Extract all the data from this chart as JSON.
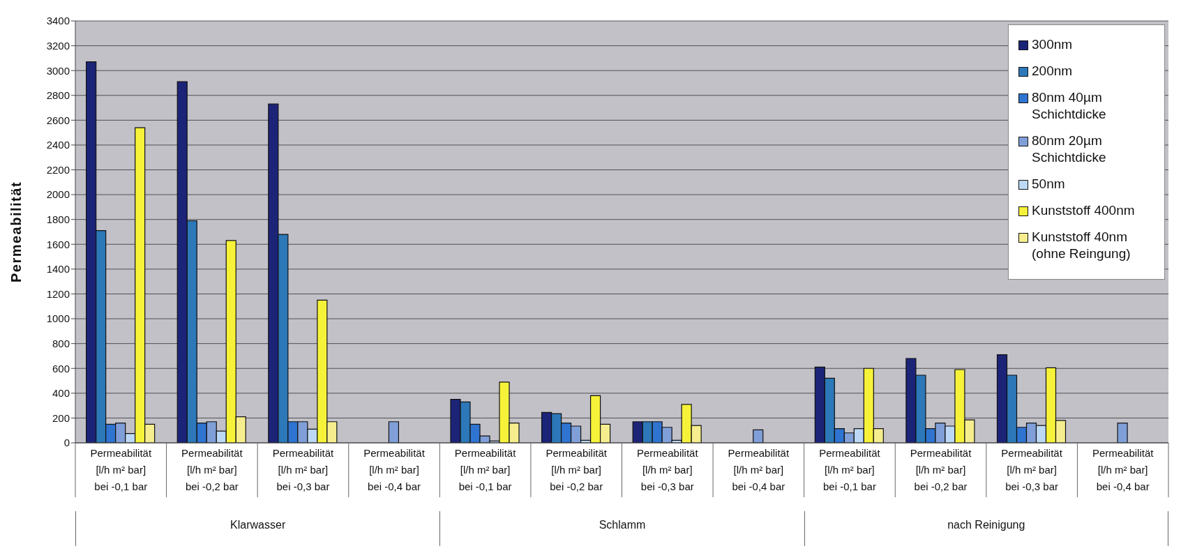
{
  "chart_data": {
    "type": "bar",
    "ylabel": "Permeabilität",
    "categories": [
      "Permeabilität [l/h m² bar] bei -0,1 bar",
      "Permeabilität [l/h m² bar] bei -0,2 bar",
      "Permeabilität [l/h m² bar] bei -0,3 bar",
      "Permeabilität [l/h m² bar] bei -0,4 bar",
      "Permeabilität [l/h m² bar] bei -0,1 bar",
      "Permeabilität [l/h m² bar] bei -0,2 bar",
      "Permeabilität [l/h m² bar] bei -0,3 bar",
      "Permeabilität [l/h m² bar] bei -0,4 bar",
      "Permeabilität [l/h m² bar] bei -0,1 bar",
      "Permeabilität [l/h m² bar] bei -0,2 bar",
      "Permeabilität [l/h m² bar] bei -0,3 bar",
      "Permeabilität [l/h m² bar] bei -0,4 bar"
    ],
    "series": [
      {
        "name": "300nm",
        "color": "#1c2478",
        "values": [
          3070,
          2910,
          2730,
          null,
          350,
          245,
          170,
          null,
          610,
          680,
          710,
          null
        ]
      },
      {
        "name": "200nm",
        "color": "#2c78b8",
        "values": [
          1710,
          1790,
          1680,
          null,
          330,
          235,
          170,
          null,
          520,
          545,
          545,
          null
        ]
      },
      {
        "name": "80nm 40µm Schichtdicke",
        "color": "#2f74d0",
        "values": [
          150,
          160,
          170,
          null,
          150,
          160,
          170,
          null,
          115,
          115,
          125,
          null
        ]
      },
      {
        "name": "80nm 20µm Schichtdicke",
        "color": "#809fd8",
        "values": [
          160,
          170,
          170,
          170,
          55,
          135,
          125,
          105,
          80,
          160,
          160,
          160
        ]
      },
      {
        "name": "50nm",
        "color": "#bcd8f4",
        "values": [
          75,
          95,
          110,
          null,
          15,
          20,
          20,
          null,
          115,
          135,
          140,
          null
        ]
      },
      {
        "name": "Kunststoff 400nm",
        "color": "#f6f23a",
        "values": [
          2540,
          1630,
          1150,
          null,
          490,
          380,
          310,
          null,
          600,
          590,
          605,
          null
        ]
      },
      {
        "name": "Kunststoff 40nm (ohne Reingung)",
        "color": "#f6ee8e",
        "values": [
          150,
          210,
          170,
          null,
          160,
          150,
          140,
          null,
          115,
          185,
          180,
          null
        ]
      }
    ],
    "ylim": [
      0,
      3400
    ],
    "yticks": [
      0,
      200,
      400,
      600,
      800,
      1000,
      1200,
      1400,
      1600,
      1800,
      2000,
      2200,
      2400,
      2600,
      2800,
      3000,
      3200,
      3400
    ],
    "grid": "y",
    "legend": "top right",
    "annotations": [
      "Klarwasser",
      "Schlamm",
      "nach Reinigung"
    ]
  }
}
